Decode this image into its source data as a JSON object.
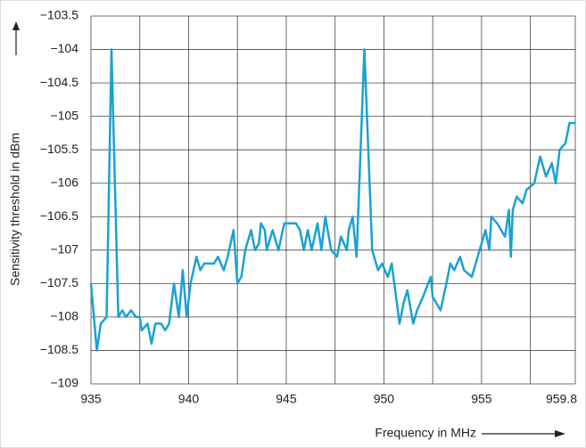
{
  "chart_data": {
    "type": "line",
    "xlabel": "Frequency in MHz",
    "ylabel": "Sensitivity threshold in dBm",
    "color": "#1ba1d2",
    "x": [
      935,
      935.3,
      935.5,
      935.8,
      936.05,
      936.4,
      936.6,
      936.8,
      937.05,
      937.3,
      937.5,
      937.6,
      937.9,
      938.1,
      938.3,
      938.6,
      938.8,
      939.0,
      939.25,
      939.5,
      939.7,
      939.9,
      940.1,
      940.4,
      940.6,
      940.8,
      941.3,
      941.5,
      941.8,
      942.0,
      942.3,
      942.5,
      942.7,
      942.9,
      943.2,
      943.4,
      943.6,
      943.7,
      943.9,
      944.0,
      944.3,
      944.6,
      944.9,
      945.5,
      945.7,
      945.9,
      946.1,
      946.3,
      946.6,
      946.8,
      947.0,
      947.3,
      947.6,
      947.8,
      948.1,
      948.2,
      948.4,
      948.6,
      949.0,
      949.4,
      949.7,
      949.9,
      950.2,
      950.4,
      950.8,
      951.0,
      951.2,
      951.5,
      951.7,
      952.0,
      952.4,
      952.5,
      952.9,
      953.2,
      953.4,
      953.6,
      953.9,
      954.1,
      954.5,
      954.8,
      955.0,
      955.2,
      955.4,
      955.5,
      955.8,
      956.2,
      956.4,
      956.5,
      956.6,
      956.8,
      957.1,
      957.3,
      957.7,
      958.0,
      958.3,
      958.6,
      958.8,
      959.0,
      959.3,
      959.5,
      959.8
    ],
    "values": [
      -107.5,
      -108.5,
      -108.1,
      -108,
      -104,
      -108,
      -107.9,
      -108,
      -107.9,
      -108,
      -108,
      -108.2,
      -108.1,
      -108.4,
      -108.1,
      -108.1,
      -108.2,
      -108.1,
      -107.5,
      -108,
      -107.3,
      -108,
      -107.5,
      -107.1,
      -107.3,
      -107.2,
      -107.2,
      -107.1,
      -107.3,
      -107.1,
      -106.7,
      -107.5,
      -107.4,
      -107,
      -106.7,
      -107,
      -106.9,
      -106.6,
      -106.7,
      -107,
      -106.7,
      -107,
      -106.6,
      -106.6,
      -106.7,
      -107,
      -106.7,
      -107,
      -106.6,
      -107,
      -106.5,
      -107,
      -107.1,
      -106.8,
      -107,
      -106.7,
      -106.5,
      -107.1,
      -104,
      -107,
      -107.3,
      -107.2,
      -107.4,
      -107.2,
      -108.1,
      -107.8,
      -107.6,
      -108.1,
      -107.9,
      -107.7,
      -107.4,
      -107.7,
      -107.9,
      -107.5,
      -107.2,
      -107.3,
      -107.1,
      -107.3,
      -107.4,
      -107.1,
      -106.9,
      -106.7,
      -107,
      -106.5,
      -106.6,
      -106.8,
      -106.4,
      -107.1,
      -106.4,
      -106.2,
      -106.3,
      -106.1,
      -106,
      -105.6,
      -105.9,
      -105.7,
      -106,
      -105.5,
      -105.4,
      -105.1,
      -105.1
    ],
    "xlim": [
      935,
      959.8
    ],
    "xticks": [
      935,
      940,
      945,
      950,
      955,
      959.8
    ],
    "xgrid": [
      937.5,
      942.5,
      947.5,
      952.5,
      957.5
    ],
    "ylim": [
      -109,
      -103.5
    ],
    "yticks": [
      {
        "value": -103.5,
        "label": "−103.5"
      },
      {
        "value": -104,
        "label": "−104"
      },
      {
        "value": -104.5,
        "label": "−104.5"
      },
      {
        "value": -105,
        "label": "−105"
      },
      {
        "value": -105.5,
        "label": "−105.5"
      },
      {
        "value": -106,
        "label": "−106"
      },
      {
        "value": -106.5,
        "label": "−106.5"
      },
      {
        "value": -107,
        "label": "−107"
      },
      {
        "value": -107.5,
        "label": "−107.5"
      },
      {
        "value": -108,
        "label": "−108"
      },
      {
        "value": -108.5,
        "label": "−108.5"
      },
      {
        "value": -109,
        "label": "−109"
      }
    ],
    "grid": true
  }
}
